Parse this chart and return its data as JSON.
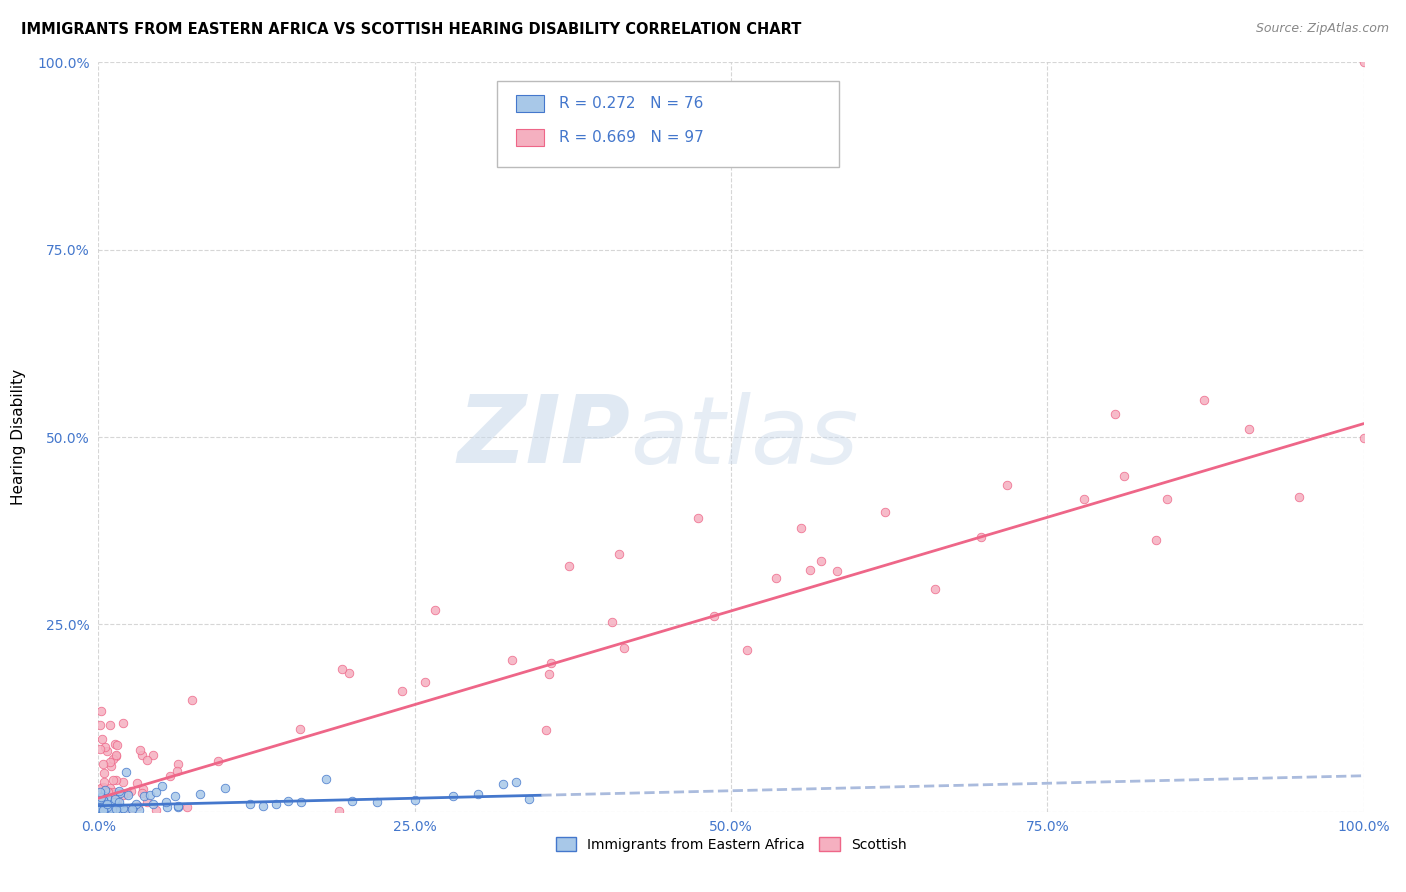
{
  "title": "IMMIGRANTS FROM EASTERN AFRICA VS SCOTTISH HEARING DISABILITY CORRELATION CHART",
  "source": "Source: ZipAtlas.com",
  "ylabel_label": "Hearing Disability",
  "xlim": [
    0,
    1.0
  ],
  "ylim": [
    0,
    1.0
  ],
  "legend_label1": "Immigrants from Eastern Africa",
  "legend_label2": "Scottish",
  "r1": 0.272,
  "n1": 76,
  "r2": 0.669,
  "n2": 97,
  "color_blue": "#a8c8e8",
  "color_pink": "#f5b0c0",
  "line_blue": "#4477cc",
  "line_pink": "#ee6688",
  "line_dashed_color": "#aabbdd",
  "watermark_zip": "ZIP",
  "watermark_atlas": "atlas",
  "title_fontsize": 10.5,
  "source_fontsize": 9,
  "tick_fontsize": 10,
  "legend_fontsize": 10
}
